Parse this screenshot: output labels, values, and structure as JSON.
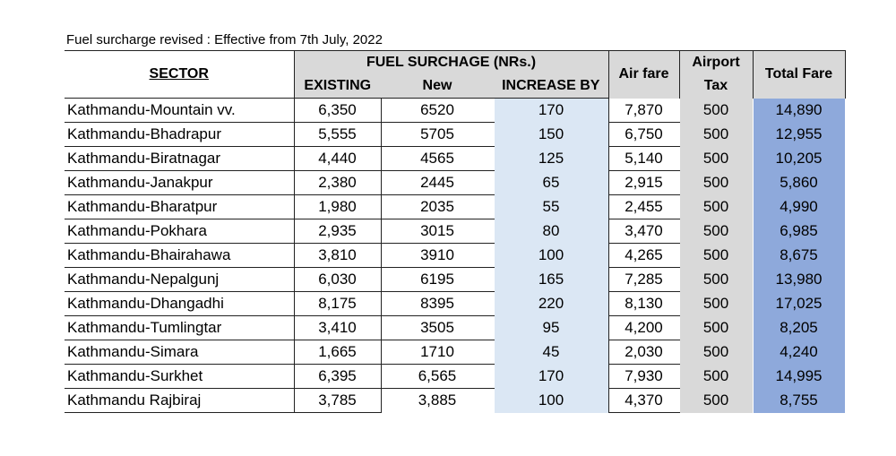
{
  "caption": "Fuel surcharge revised : Effective from 7th July, 2022",
  "headers": {
    "sector": "SECTOR",
    "fuel_surcharge": "FUEL SURCHAGE (NRs.)",
    "existing": "EXISTING",
    "new": "New",
    "increase_by": "INCREASE BY",
    "air_fare": "Air fare",
    "airport_tax_line1": "Airport",
    "airport_tax_line2": "Tax",
    "total_fare": "Total Fare"
  },
  "rows": [
    {
      "sector": "Kathmandu-Mountain vv.",
      "existing": "6,350",
      "new": "6520",
      "increase": "170",
      "air_fare": "7,870",
      "airport_tax": "500",
      "total_fare": "14,890"
    },
    {
      "sector": "Kathmandu-Bhadrapur",
      "existing": "5,555",
      "new": "5705",
      "increase": "150",
      "air_fare": "6,750",
      "airport_tax": "500",
      "total_fare": "12,955"
    },
    {
      "sector": "Kathmandu-Biratnagar",
      "existing": "4,440",
      "new": "4565",
      "increase": "125",
      "air_fare": "5,140",
      "airport_tax": "500",
      "total_fare": "10,205"
    },
    {
      "sector": "Kathmandu-Janakpur",
      "existing": "2,380",
      "new": "2445",
      "increase": "65",
      "air_fare": "2,915",
      "airport_tax": "500",
      "total_fare": "5,860"
    },
    {
      "sector": "Kathmandu-Bharatpur",
      "existing": "1,980",
      "new": "2035",
      "increase": "55",
      "air_fare": "2,455",
      "airport_tax": "500",
      "total_fare": "4,990"
    },
    {
      "sector": "Kathmandu-Pokhara",
      "existing": "2,935",
      "new": "3015",
      "increase": "80",
      "air_fare": "3,470",
      "airport_tax": "500",
      "total_fare": "6,985"
    },
    {
      "sector": "Kathmandu-Bhairahawa",
      "existing": "3,810",
      "new": "3910",
      "increase": "100",
      "air_fare": "4,265",
      "airport_tax": "500",
      "total_fare": "8,675"
    },
    {
      "sector": "Kathmandu-Nepalgunj",
      "existing": "6,030",
      "new": "6195",
      "increase": "165",
      "air_fare": "7,285",
      "airport_tax": "500",
      "total_fare": "13,980"
    },
    {
      "sector": "Kathmandu-Dhangadhi",
      "existing": "8,175",
      "new": "8395",
      "increase": "220",
      "air_fare": "8,130",
      "airport_tax": "500",
      "total_fare": "17,025"
    },
    {
      "sector": "Kathmandu-Tumlingtar",
      "existing": "3,410",
      "new": "3505",
      "increase": "95",
      "air_fare": "4,200",
      "airport_tax": "500",
      "total_fare": "8,205"
    },
    {
      "sector": "Kathmandu-Simara",
      "existing": "1,665",
      "new": "1710",
      "increase": "45",
      "air_fare": "2,030",
      "airport_tax": "500",
      "total_fare": "4,240"
    },
    {
      "sector": "Kathmandu-Surkhet",
      "existing": "6,395",
      "new": "6,565",
      "increase": "170",
      "air_fare": "7,930",
      "airport_tax": "500",
      "total_fare": "14,995"
    },
    {
      "sector": "Kathmandu Rajbiraj",
      "existing": "3,785",
      "new": "3,885",
      "increase": "100",
      "air_fare": "4,370",
      "airport_tax": "500",
      "total_fare": "8,755"
    }
  ],
  "colors": {
    "header_gray": "#d9d9d9",
    "increase_column": "#dbe7f4",
    "airport_tax_column": "#d9d9d9",
    "total_fare_column": "#8ea9db"
  }
}
